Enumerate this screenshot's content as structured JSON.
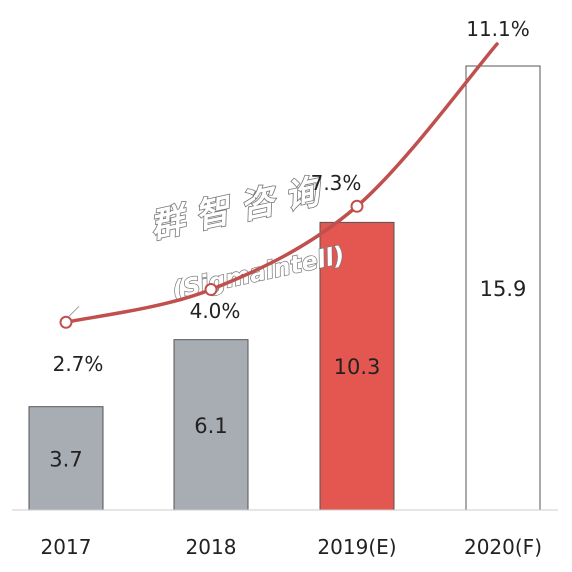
{
  "chart_data": {
    "type": "bar",
    "title": "",
    "xlabel": "",
    "ylabel": "",
    "categories": [
      "2017",
      "2018",
      "2019(E)",
      "2020(F)"
    ],
    "series": [
      {
        "type": "bar",
        "values": [
          3.7,
          6.1,
          10.3,
          15.9
        ],
        "labels": [
          "3.7",
          "6.1",
          "10.3",
          "15.9"
        ],
        "colors": [
          "#a8adb3",
          "#a8adb3",
          "#e35750",
          "#ffffff"
        ]
      },
      {
        "type": "line",
        "values": [
          2.7,
          4.0,
          7.3,
          11.1
        ],
        "labels": [
          "2.7%",
          "4.0%",
          "7.3%",
          "11.1%"
        ],
        "color": "#c0504d"
      }
    ],
    "bar_ylim": [
      0,
      16
    ],
    "line_ylim": [
      0,
      12
    ],
    "grid": false,
    "legend": "none"
  },
  "watermark": {
    "cjk": "群 智 咨 询",
    "latin": "(Sigmaintell)"
  }
}
